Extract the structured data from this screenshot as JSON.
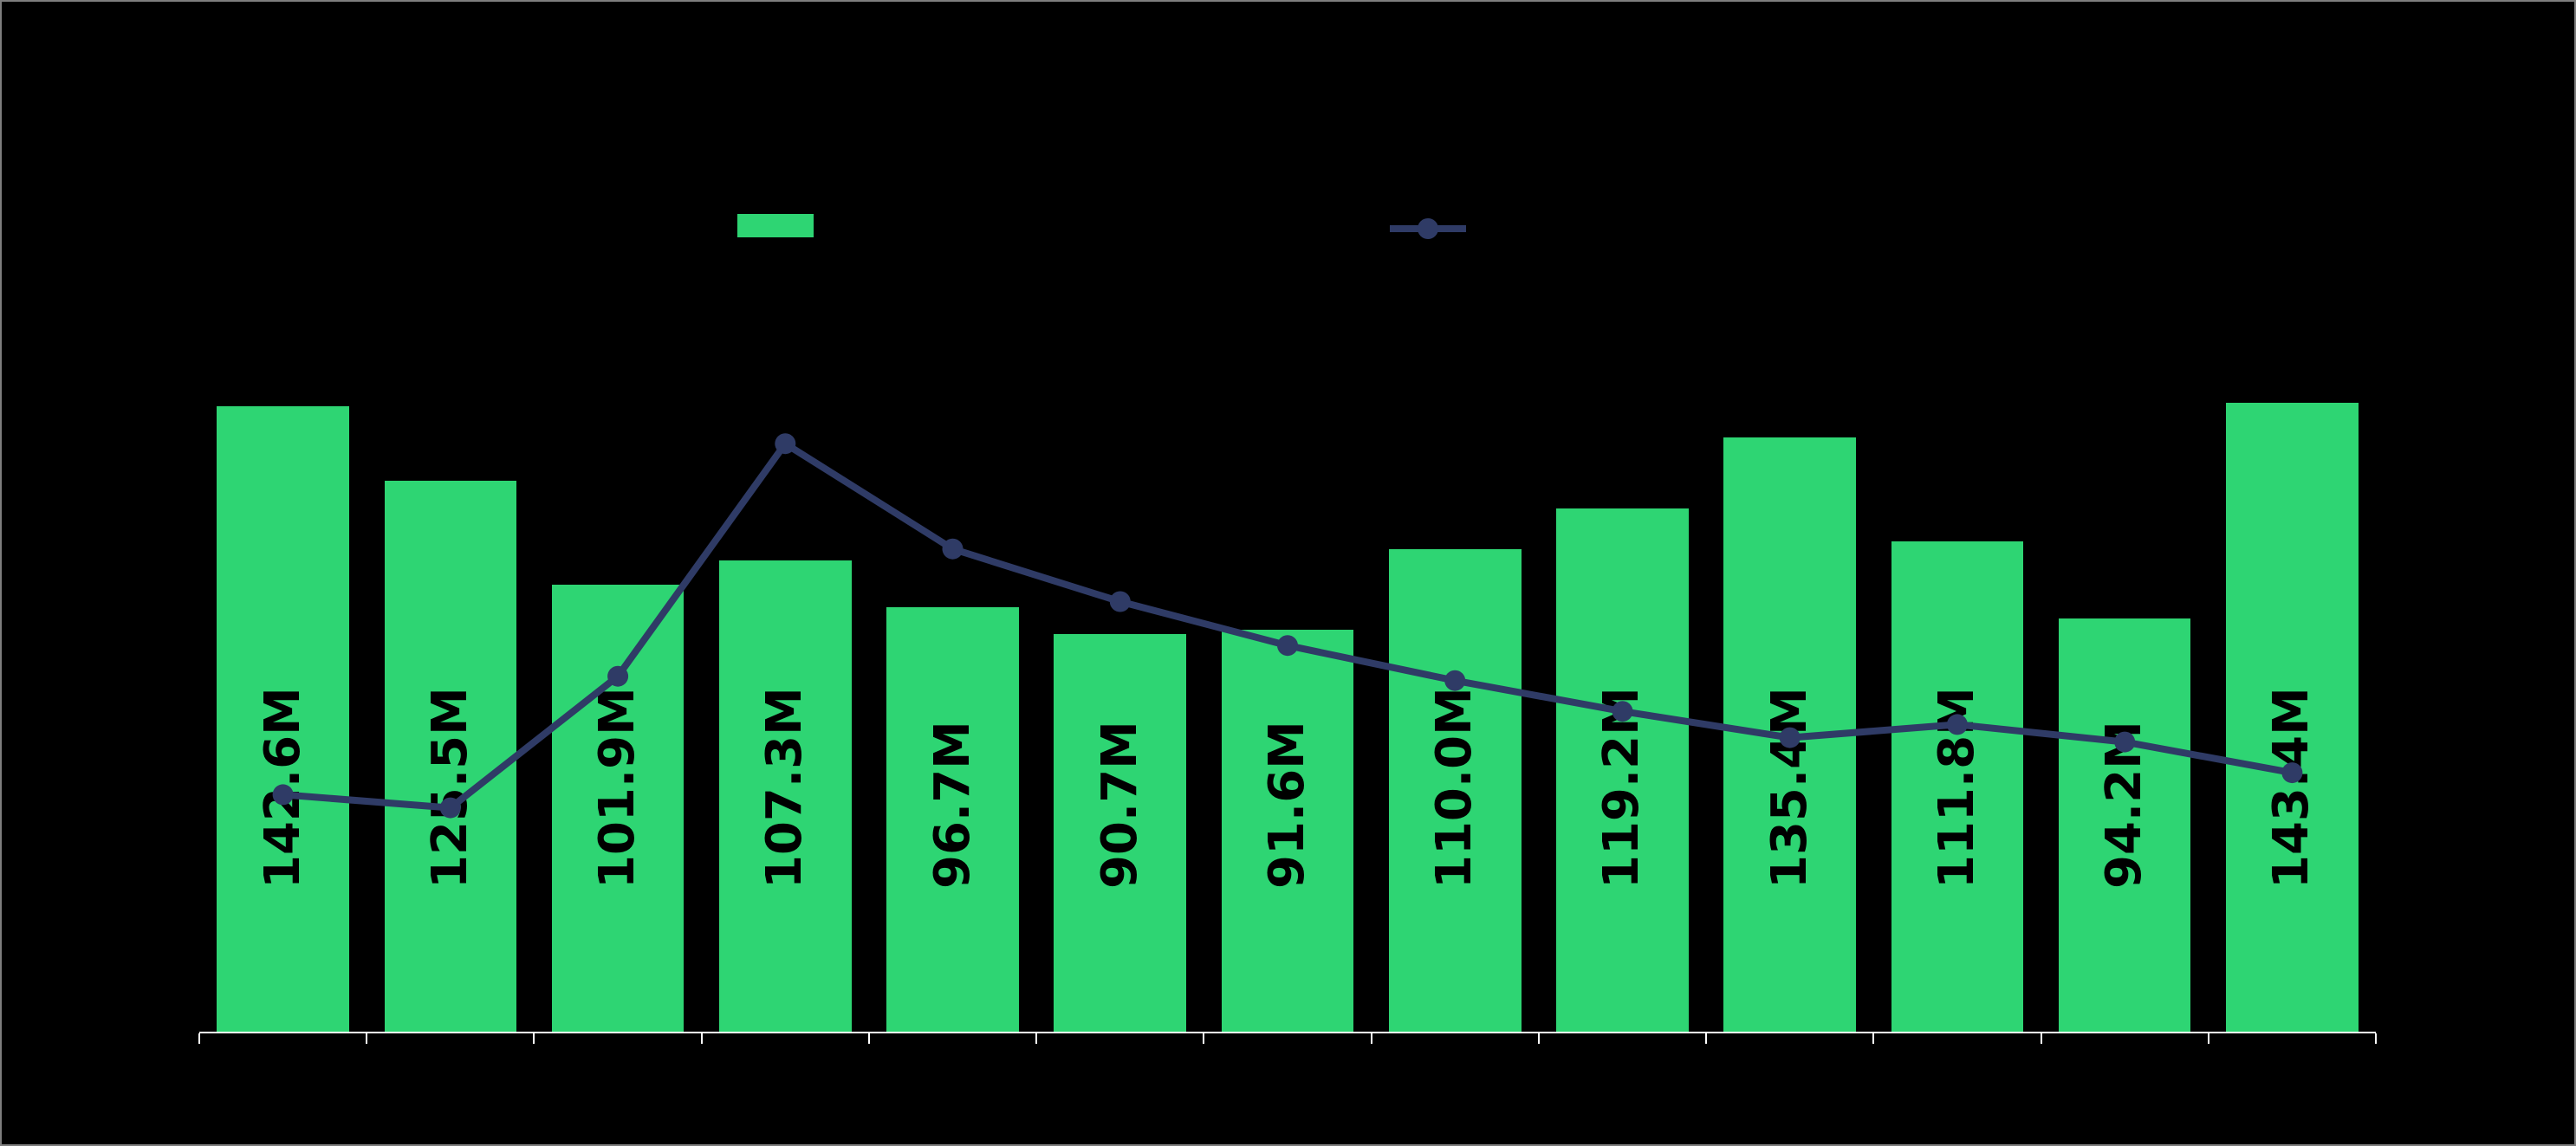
{
  "window": {
    "background": "#000000",
    "border_color": "#7e7e7e"
  },
  "legend": {
    "position": "top-center",
    "bar_swatch_color": "#2ed573",
    "line_swatch_color": "#2f3b66",
    "labels_visible": false
  },
  "axis": {
    "line_color": "#ffffff",
    "tick_count": 14,
    "tick_labels_visible": false
  },
  "chart_data": {
    "type": "bar",
    "title_visible": false,
    "legend_position": "top-center",
    "grid": false,
    "unit": "M (millions)",
    "num_categories": 13,
    "categories_visible": false,
    "series": [
      {
        "name": "bar-series",
        "type": "bar",
        "color": "#2ed573",
        "label_color": "#000000",
        "values": [
          142.6,
          125.5,
          101.9,
          107.3,
          96.7,
          90.7,
          91.6,
          110.0,
          119.2,
          135.4,
          111.8,
          94.2,
          143.4
        ],
        "data_labels": [
          "142.6M",
          "125.5M",
          "101.9M",
          "107.3M",
          "96.7M",
          "90.7M",
          "91.6M",
          "110.0M",
          "119.2M",
          "135.4M",
          "111.8M",
          "94.2M",
          "143.4M"
        ]
      },
      {
        "name": "line-series",
        "type": "line",
        "color": "#2f3b66",
        "marker": "circle",
        "values_estimated": [
          54,
          51,
          81,
          134,
          110,
          98,
          88,
          80,
          73,
          67,
          70,
          66,
          59
        ]
      }
    ]
  }
}
